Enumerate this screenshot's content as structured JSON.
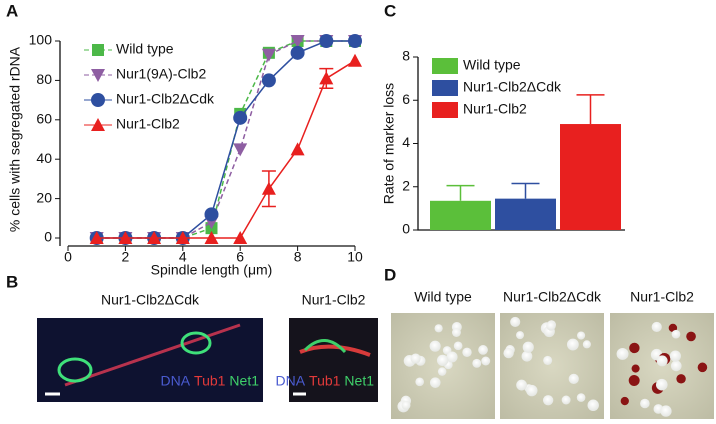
{
  "chart_data": [
    {
      "type": "line",
      "panel": "A",
      "xlabel": "Spindle length (μm)",
      "ylabel": "% cells with segregated rDNA",
      "xlim": [
        0,
        10
      ],
      "xticks": [
        0,
        2,
        4,
        6,
        8,
        10
      ],
      "ylim": [
        0,
        100
      ],
      "yticks": [
        0,
        20,
        40,
        60,
        80,
        100
      ],
      "x": [
        1,
        2,
        3,
        4,
        5,
        6,
        7,
        8,
        9,
        10
      ],
      "series": [
        {
          "name": "Wild type",
          "color": "#4cb848",
          "marker": "square",
          "dashed": true,
          "values": [
            0,
            0,
            0,
            0,
            5,
            63,
            94,
            100,
            100,
            100
          ]
        },
        {
          "name": "Nur1(9A)-Clb2",
          "color": "#8e5ea2",
          "marker": "triangle-down",
          "dashed": true,
          "values": [
            0,
            0,
            0,
            0,
            8,
            45,
            93,
            100,
            100,
            100
          ]
        },
        {
          "name": "Nur1-Clb2ΔCdk",
          "color": "#2e4fa0",
          "marker": "circle",
          "dashed": false,
          "values": [
            0,
            0,
            0,
            0,
            12,
            61,
            80,
            94,
            100,
            100
          ]
        },
        {
          "name": "Nur1-Clb2",
          "color": "#e8201f",
          "marker": "triangle-up",
          "dashed": false,
          "values": [
            0,
            0,
            0,
            0,
            0,
            0,
            25,
            45,
            81,
            90
          ],
          "errors": [
            null,
            null,
            null,
            null,
            null,
            null,
            9,
            null,
            5,
            null
          ]
        }
      ]
    },
    {
      "type": "bar",
      "panel": "C",
      "ylabel": "Rate of marker loss",
      "ylim": [
        0,
        8
      ],
      "yticks": [
        0,
        2,
        4,
        6,
        8
      ],
      "categories": [
        null
      ],
      "series": [
        {
          "name": "Wild type",
          "color": "#5bbf3a",
          "values": [
            1.35
          ],
          "errors": [
            0.7
          ]
        },
        {
          "name": "Nur1-Clb2ΔCdk",
          "color": "#2e4fa0",
          "values": [
            1.45
          ],
          "errors": [
            0.7
          ]
        },
        {
          "name": "Nur1-Clb2",
          "color": "#e8201f",
          "values": [
            4.9
          ],
          "errors": [
            1.35
          ]
        }
      ]
    }
  ],
  "panel_b": {
    "label": "B",
    "images": [
      {
        "title": "Nur1-Clb2ΔCdk",
        "channels": [
          "DNA",
          "Tub1",
          "Net1"
        ]
      },
      {
        "title": "Nur1-Clb2",
        "channels": [
          "DNA",
          "Tub1",
          "Net1"
        ]
      }
    ]
  },
  "panel_d": {
    "label": "D",
    "images": [
      "Wild type",
      "Nur1-Clb2ΔCdk",
      "Nur1-Clb2"
    ]
  }
}
